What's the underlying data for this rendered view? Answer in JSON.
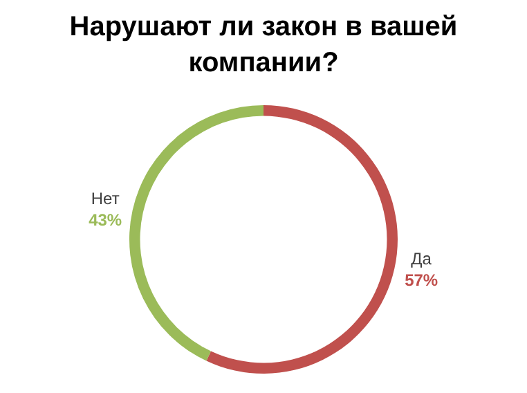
{
  "chart_data": {
    "type": "donut",
    "title": "Нарушают ли закон в вашей компании?",
    "categories": [
      "Да",
      "Нет"
    ],
    "values": [
      57,
      43
    ],
    "colors": [
      "#c0504d",
      "#9bbb59"
    ],
    "value_labels": [
      "57%",
      "43%"
    ],
    "legend": false
  }
}
